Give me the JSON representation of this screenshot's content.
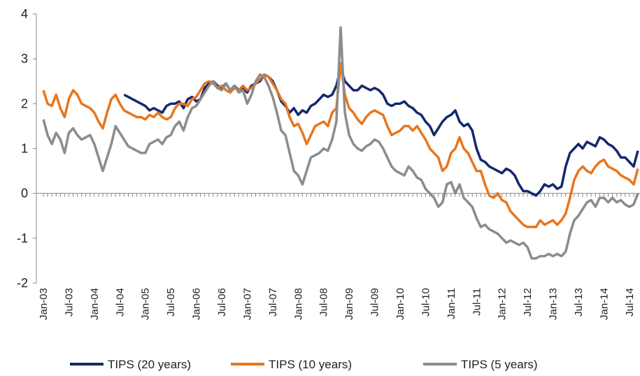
{
  "chart_data": {
    "type": "line",
    "categories": [
      "Jan-03",
      null,
      null,
      null,
      null,
      null,
      "Jul-03",
      null,
      null,
      null,
      null,
      null,
      "Jan-04",
      null,
      null,
      null,
      null,
      null,
      "Jul-04",
      null,
      null,
      null,
      null,
      null,
      "Jan-05",
      null,
      null,
      null,
      null,
      null,
      "Jul-05",
      null,
      null,
      null,
      null,
      null,
      "Jan-06",
      null,
      null,
      null,
      null,
      null,
      "Jul-06",
      null,
      null,
      null,
      null,
      null,
      "Jan-07",
      null,
      null,
      null,
      null,
      null,
      "Jul-07",
      null,
      null,
      null,
      null,
      null,
      "Jan-08",
      null,
      null,
      null,
      null,
      null,
      "Jul-08",
      null,
      null,
      null,
      null,
      null,
      "Jan-09",
      null,
      null,
      null,
      null,
      null,
      "Jul-09",
      null,
      null,
      null,
      null,
      null,
      "Jan-10",
      null,
      null,
      null,
      null,
      null,
      "Jul-10",
      null,
      null,
      null,
      null,
      null,
      "Jan-11",
      null,
      null,
      null,
      null,
      null,
      "Jul-11",
      null,
      null,
      null,
      null,
      null,
      "Jan-12",
      null,
      null,
      null,
      null,
      null,
      "Jul-12",
      null,
      null,
      null,
      null,
      null,
      "Jan-13",
      null,
      null,
      null,
      null,
      null,
      "Jul-13",
      null,
      null,
      null,
      null,
      null,
      "Jan-14",
      null,
      null,
      null,
      null,
      null,
      "Jul-14",
      null,
      null
    ],
    "series": [
      {
        "name": "TIPS (20 years)",
        "color": "#14286e",
        "values": [
          null,
          null,
          null,
          null,
          null,
          null,
          null,
          null,
          null,
          null,
          null,
          null,
          null,
          null,
          null,
          null,
          null,
          null,
          null,
          2.2,
          2.15,
          2.1,
          2.05,
          2.0,
          1.95,
          1.85,
          1.9,
          1.85,
          1.8,
          1.95,
          2.0,
          2.0,
          2.05,
          1.9,
          2.1,
          2.15,
          2.05,
          2.1,
          2.35,
          2.45,
          2.5,
          2.4,
          2.35,
          2.45,
          2.3,
          2.4,
          2.3,
          2.35,
          2.25,
          2.4,
          2.45,
          2.5,
          2.65,
          2.6,
          2.5,
          2.3,
          2.05,
          1.95,
          1.8,
          1.9,
          1.75,
          1.85,
          1.8,
          1.95,
          2.0,
          2.1,
          2.2,
          2.15,
          2.2,
          2.4,
          2.8,
          2.5,
          2.4,
          2.3,
          2.3,
          2.4,
          2.35,
          2.3,
          2.35,
          2.3,
          2.2,
          2.0,
          1.95,
          2.0,
          2.0,
          2.05,
          1.95,
          1.9,
          1.8,
          1.75,
          1.6,
          1.5,
          1.3,
          1.45,
          1.6,
          1.7,
          1.75,
          1.85,
          1.6,
          1.5,
          1.55,
          1.4,
          1.0,
          0.75,
          0.7,
          0.6,
          0.55,
          0.5,
          0.45,
          0.55,
          0.5,
          0.4,
          0.2,
          0.05,
          0.05,
          0.0,
          -0.05,
          0.05,
          0.2,
          0.15,
          0.2,
          0.1,
          0.15,
          0.6,
          0.9,
          1.0,
          1.1,
          1.0,
          1.15,
          1.1,
          1.05,
          1.25,
          1.2,
          1.1,
          1.05,
          0.95,
          0.8,
          0.8,
          0.7,
          0.6,
          0.95
        ]
      },
      {
        "name": "TIPS (10 years)",
        "color": "#e8761e",
        "values": [
          2.3,
          2.0,
          1.95,
          2.2,
          1.9,
          1.7,
          2.1,
          2.3,
          2.2,
          2.0,
          1.95,
          1.9,
          1.8,
          1.6,
          1.45,
          1.8,
          2.1,
          2.2,
          2.0,
          1.85,
          1.8,
          1.75,
          1.7,
          1.7,
          1.65,
          1.75,
          1.7,
          1.8,
          1.7,
          1.65,
          1.7,
          1.9,
          2.0,
          2.0,
          1.95,
          2.1,
          2.15,
          2.3,
          2.45,
          2.5,
          2.45,
          2.35,
          2.4,
          2.3,
          2.25,
          2.35,
          2.3,
          2.4,
          2.3,
          2.35,
          2.45,
          2.55,
          2.65,
          2.6,
          2.45,
          2.3,
          2.1,
          2.0,
          1.7,
          1.5,
          1.55,
          1.35,
          1.1,
          1.3,
          1.5,
          1.55,
          1.6,
          1.5,
          1.8,
          1.9,
          2.9,
          2.2,
          1.9,
          1.8,
          1.65,
          1.55,
          1.7,
          1.8,
          1.85,
          1.8,
          1.75,
          1.5,
          1.3,
          1.35,
          1.4,
          1.5,
          1.5,
          1.4,
          1.5,
          1.35,
          1.2,
          1.0,
          0.9,
          0.8,
          0.5,
          0.6,
          0.9,
          1.0,
          1.25,
          1.0,
          0.9,
          0.7,
          0.5,
          0.5,
          0.2,
          -0.05,
          -0.1,
          0.0,
          -0.15,
          -0.2,
          -0.4,
          -0.5,
          -0.6,
          -0.7,
          -0.75,
          -0.75,
          -0.75,
          -0.6,
          -0.7,
          -0.65,
          -0.6,
          -0.7,
          -0.6,
          -0.45,
          -0.1,
          0.3,
          0.5,
          0.6,
          0.5,
          0.45,
          0.6,
          0.7,
          0.75,
          0.6,
          0.55,
          0.5,
          0.4,
          0.35,
          0.3,
          0.2,
          0.55
        ]
      },
      {
        "name": "TIPS (5 years)",
        "color": "#8c8c8c",
        "values": [
          1.65,
          1.3,
          1.1,
          1.35,
          1.2,
          0.9,
          1.35,
          1.45,
          1.3,
          1.2,
          1.25,
          1.3,
          1.1,
          0.8,
          0.5,
          0.8,
          1.1,
          1.5,
          1.35,
          1.2,
          1.05,
          1.0,
          0.95,
          0.9,
          0.9,
          1.1,
          1.15,
          1.2,
          1.1,
          1.25,
          1.3,
          1.5,
          1.6,
          1.4,
          1.7,
          1.9,
          1.95,
          2.1,
          2.25,
          2.4,
          2.5,
          2.35,
          2.3,
          2.45,
          2.3,
          2.4,
          2.25,
          2.3,
          2.0,
          2.2,
          2.5,
          2.65,
          2.6,
          2.4,
          2.15,
          1.8,
          1.4,
          1.3,
          0.9,
          0.5,
          0.4,
          0.2,
          0.5,
          0.8,
          0.85,
          0.9,
          1.0,
          0.95,
          1.2,
          1.6,
          3.7,
          1.8,
          1.3,
          1.1,
          1.0,
          0.95,
          1.05,
          1.1,
          1.2,
          1.15,
          1.0,
          0.8,
          0.6,
          0.5,
          0.45,
          0.4,
          0.6,
          0.5,
          0.35,
          0.3,
          0.1,
          0.0,
          -0.1,
          -0.3,
          -0.2,
          0.2,
          0.25,
          0.0,
          0.2,
          -0.1,
          -0.2,
          -0.3,
          -0.55,
          -0.75,
          -0.7,
          -0.8,
          -0.85,
          -0.9,
          -1.0,
          -1.1,
          -1.05,
          -1.1,
          -1.15,
          -1.1,
          -1.2,
          -1.45,
          -1.45,
          -1.4,
          -1.4,
          -1.35,
          -1.4,
          -1.35,
          -1.4,
          -1.3,
          -0.9,
          -0.6,
          -0.5,
          -0.35,
          -0.2,
          -0.15,
          -0.3,
          -0.1,
          -0.1,
          -0.2,
          -0.1,
          -0.2,
          -0.15,
          -0.25,
          -0.3,
          -0.25,
          0.0
        ]
      }
    ],
    "ylim": [
      -2,
      4
    ],
    "yticks": [
      -2,
      -1,
      0,
      1,
      2,
      3,
      4
    ],
    "grid": false,
    "legend": "bottom"
  }
}
